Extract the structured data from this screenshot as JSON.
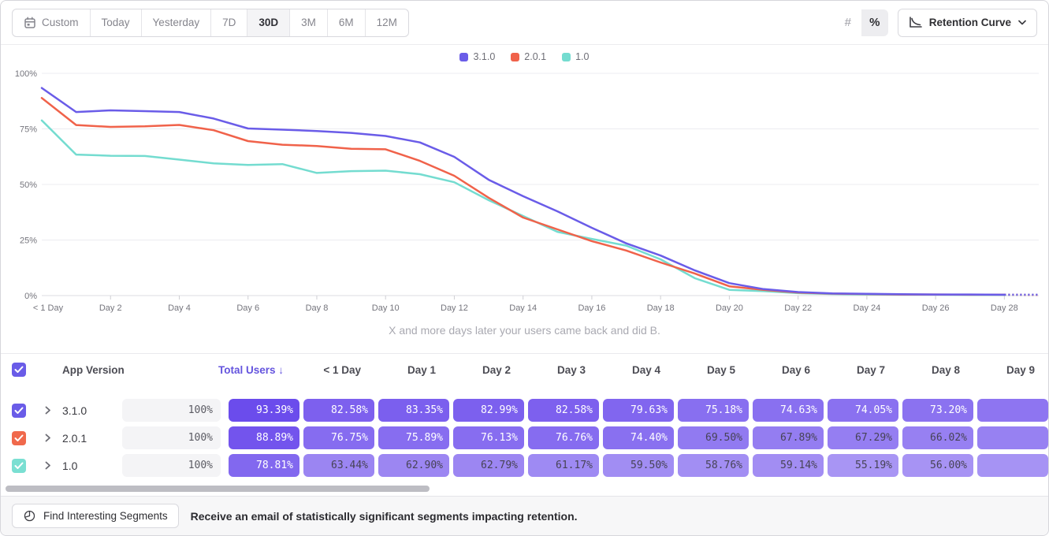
{
  "toolbar": {
    "date_ranges": [
      "Custom",
      "Today",
      "Yesterday",
      "7D",
      "30D",
      "3M",
      "6M",
      "12M"
    ],
    "selected_range": "30D",
    "format_options": [
      "#",
      "%"
    ],
    "selected_format": "%",
    "view_selector": {
      "label": "Retention Curve"
    }
  },
  "colors": {
    "purple": "#6a5ce8",
    "orange": "#f0624a",
    "teal": "#74dcd0",
    "header_accent": "#6454de"
  },
  "chart_data": {
    "type": "line",
    "title": "",
    "caption": "X and more days later your users came back and did B.",
    "y_ticks": [
      "0%",
      "25%",
      "50%",
      "75%",
      "100%"
    ],
    "ylim": [
      0,
      100
    ],
    "x_tick_days": [
      0,
      2,
      4,
      6,
      8,
      10,
      12,
      14,
      16,
      18,
      20,
      22,
      24,
      26,
      28
    ],
    "x_tick_labels": [
      "< 1 Day",
      "Day 2",
      "Day 4",
      "Day 6",
      "Day 8",
      "Day 10",
      "Day 12",
      "Day 14",
      "Day 16",
      "Day 18",
      "Day 20",
      "Day 22",
      "Day 24",
      "Day 26",
      "Day 28"
    ],
    "x_days": [
      0,
      1,
      2,
      3,
      4,
      5,
      6,
      7,
      8,
      9,
      10,
      11,
      12,
      13,
      14,
      15,
      16,
      17,
      18,
      19,
      20,
      21,
      22,
      23,
      24,
      25,
      26,
      27,
      28,
      29
    ],
    "last_segment_dashed": true,
    "legend_position": "top-center",
    "grid": true,
    "series": [
      {
        "name": "3.1.0",
        "color": "#6a5ce8",
        "values": [
          93.39,
          82.58,
          83.35,
          82.99,
          82.58,
          79.63,
          75.18,
          74.63,
          74.05,
          73.2,
          71.8,
          68.9,
          62.4,
          52.1,
          44.7,
          37.9,
          30.5,
          23.5,
          18.0,
          11.3,
          5.6,
          2.9,
          1.6,
          1.0,
          0.8,
          0.6,
          0.5,
          0.5,
          0.4,
          0.4
        ]
      },
      {
        "name": "2.0.1",
        "color": "#f0624a",
        "values": [
          88.89,
          76.75,
          75.89,
          76.13,
          76.76,
          74.4,
          69.5,
          67.89,
          67.29,
          66.02,
          65.8,
          60.6,
          53.9,
          44.0,
          35.1,
          29.8,
          24.5,
          20.3,
          14.9,
          9.9,
          4.2,
          2.6,
          1.4,
          0.9,
          0.7,
          0.5,
          0.5,
          0.4,
          0.4,
          0.3
        ]
      },
      {
        "name": "1.0",
        "color": "#74dcd0",
        "values": [
          78.81,
          63.44,
          62.9,
          62.79,
          61.17,
          59.5,
          58.76,
          59.14,
          55.19,
          56.0,
          56.2,
          54.6,
          51.0,
          42.9,
          35.8,
          28.7,
          25.5,
          22.5,
          16.3,
          7.8,
          2.6,
          2.0,
          1.1,
          0.7,
          0.5,
          0.4,
          0.4,
          0.3,
          0.3,
          0.3
        ]
      }
    ]
  },
  "table": {
    "headers": {
      "app_version": "App Version",
      "total_users": "Total Users",
      "sort_arrow": "↓",
      "days": [
        "< 1 Day",
        "Day 1",
        "Day 2",
        "Day 3",
        "Day 4",
        "Day 5",
        "Day 6",
        "Day 7",
        "Day 8",
        "Day 9"
      ]
    },
    "rows": [
      {
        "name": "3.1.0",
        "color": "#6a5ce8",
        "checked": true,
        "total": "100%",
        "cells": [
          93.39,
          82.58,
          83.35,
          82.99,
          82.58,
          79.63,
          75.18,
          74.63,
          74.05,
          73.2
        ]
      },
      {
        "name": "2.0.1",
        "color": "#f0694c",
        "checked": true,
        "total": "100%",
        "cells": [
          88.89,
          76.75,
          75.89,
          76.13,
          76.76,
          74.4,
          69.5,
          67.89,
          67.29,
          66.02
        ]
      },
      {
        "name": "1.0",
        "color": "#7adfd2",
        "checked": true,
        "total": "100%",
        "cells": [
          78.81,
          63.44,
          62.9,
          62.79,
          61.17,
          59.5,
          58.76,
          59.14,
          55.19,
          56.0
        ]
      }
    ],
    "header_checkbox_checked": true
  },
  "footer": {
    "button_label": "Find Interesting Segments",
    "message": "Receive an email of statistically significant segments impacting retention."
  }
}
